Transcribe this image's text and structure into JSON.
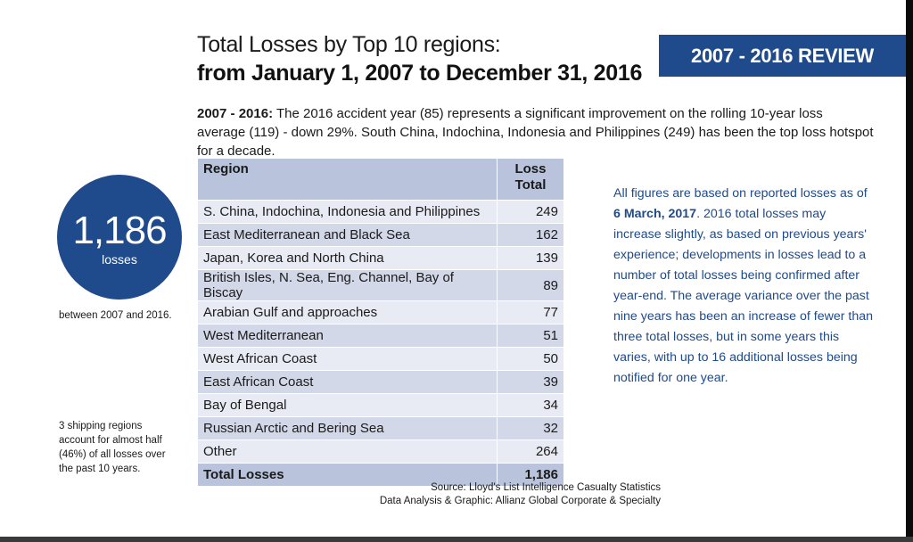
{
  "header": {
    "title_line1": "Total Losses by Top 10 regions:",
    "title_line2": "from January 1, 2007 to December 31, 2016",
    "badge": "2007 - 2016 REVIEW"
  },
  "intro": {
    "lead": "2007 - 2016:",
    "text": " The 2016 accident year (85) represents a significant improvement on the rolling 10-year loss average (119) - down 29%. South China, Indochina, Indonesia and Philippines (249) has been the top loss hotspot for a decade."
  },
  "sidebar": {
    "circle_number": "1,186",
    "circle_label": "losses",
    "caption1": "between 2007 and 2016.",
    "caption2": "3 shipping regions account for almost half (46%) of all losses over the past 10 years."
  },
  "table": {
    "headers": [
      "Region",
      "Loss Total"
    ],
    "rows": [
      {
        "region": "S. China, Indochina, Indonesia and Philippines",
        "total": "249"
      },
      {
        "region": "East Mediterranean and Black Sea",
        "total": "162"
      },
      {
        "region": "Japan, Korea and North China",
        "total": "139"
      },
      {
        "region": "British Isles, N. Sea, Eng. Channel, Bay of Biscay",
        "total": "89"
      },
      {
        "region": "Arabian Gulf and approaches",
        "total": "77"
      },
      {
        "region": "West Mediterranean",
        "total": "51"
      },
      {
        "region": "West African Coast",
        "total": "50"
      },
      {
        "region": "East African Coast",
        "total": "39"
      },
      {
        "region": "Bay of Bengal",
        "total": "34"
      },
      {
        "region": "Russian Arctic and Bering Sea",
        "total": "32"
      },
      {
        "region": "Other",
        "total": "264"
      }
    ],
    "total_label": "Total Losses",
    "total_value": "1,186"
  },
  "note": {
    "pre": "All figures are based on reported losses as of ",
    "date": "6 March, 2017",
    "post": ". 2016 total losses may increase slightly, as based on previous years' experience; developments in losses lead to a number of total losses being confirmed after year-end. The average variance over the past nine years has been an increase of fewer than three total losses, but in some years this varies, with up to 16 additional losses being notified for one year."
  },
  "source": {
    "line1": "Source: Lloyd's List Intelligence Casualty Statistics",
    "line2": "Data Analysis & Graphic: Allianz Global Corporate & Specialty"
  },
  "colors": {
    "brand_blue": "#1f4a8c",
    "header_row": "#b9c3dc",
    "row_light": "#e9ebf4",
    "row_dark": "#d3d8e9"
  }
}
